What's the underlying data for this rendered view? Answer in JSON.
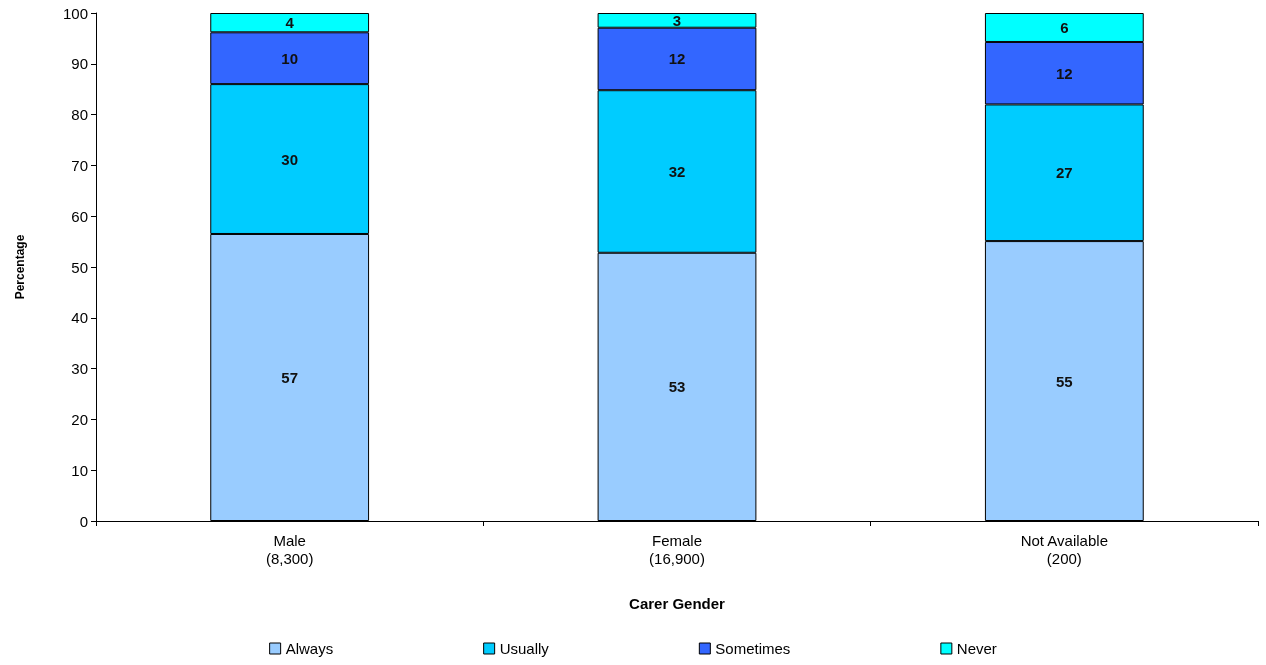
{
  "chart_data": {
    "type": "bar",
    "stacked": true,
    "xlabel": "Carer Gender",
    "ylabel": "Percentage",
    "categories": [
      "Male\n(8,300)",
      "Female\n(16,900)",
      "Not Available\n(200)"
    ],
    "series": [
      {
        "name": "Always",
        "color": "#99ccff",
        "values": [
          56.5,
          52.8,
          55.1
        ],
        "value_labels": [
          "57",
          "53",
          "55"
        ]
      },
      {
        "name": "Usually",
        "color": "#00ccff",
        "values": [
          29.5,
          32.0,
          26.9
        ],
        "value_labels": [
          "30",
          "32",
          "27"
        ]
      },
      {
        "name": "Sometimes",
        "color": "#3366ff",
        "values": [
          10.2,
          12.3,
          12.3
        ],
        "value_labels": [
          "10",
          "12",
          "12"
        ]
      },
      {
        "name": "Never",
        "color": "#00ffff",
        "values": [
          3.8,
          2.9,
          5.7
        ],
        "value_labels": [
          "4",
          "3",
          "6"
        ]
      }
    ],
    "ylim": [
      0,
      100
    ],
    "yticks": [
      0,
      10,
      20,
      30,
      40,
      50,
      60,
      70,
      80,
      90,
      100
    ],
    "grid": false,
    "legend": "bottom"
  }
}
